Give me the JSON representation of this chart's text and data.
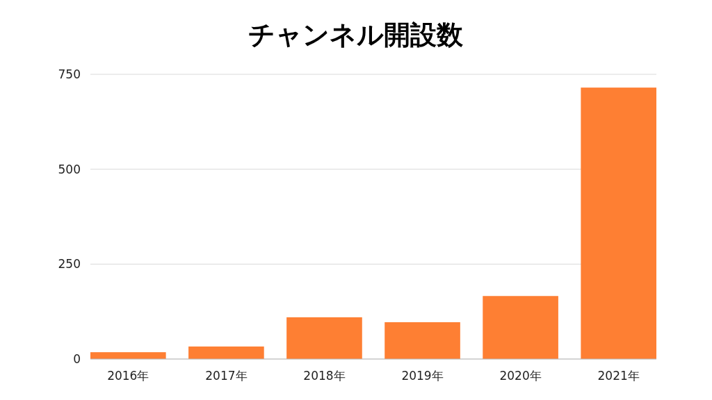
{
  "chart_data": {
    "type": "bar",
    "title": "チャンネル開設数",
    "categories": [
      "2016年",
      "2017年",
      "2018年",
      "2019年",
      "2020年",
      "2021年"
    ],
    "values": [
      18,
      33,
      110,
      97,
      166,
      715
    ],
    "color": "#fe7f33",
    "ylim": [
      0,
      750
    ],
    "yticks": [
      0,
      250,
      500,
      750
    ],
    "grid": "y"
  }
}
